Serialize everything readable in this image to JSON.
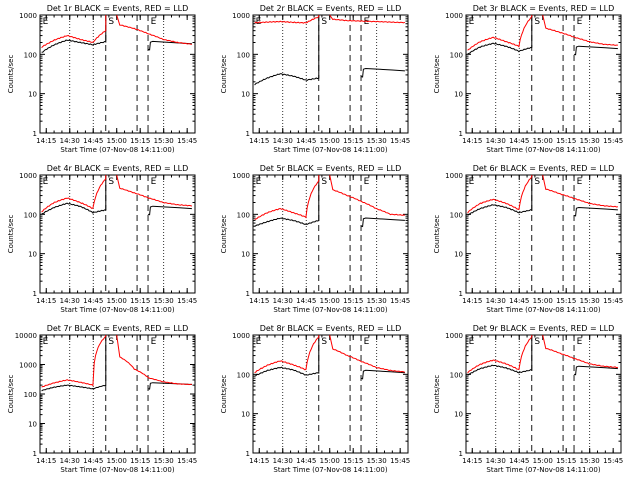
{
  "colors": {
    "events": "#000000",
    "lld": "#ff0000",
    "axis": "#000000",
    "background": "#ffffff"
  },
  "common": {
    "ylabel": "Counts/sec",
    "xlabel": "Start Time (07-Nov-08 14:11:00)",
    "xticks": [
      "14:15",
      "14:30",
      "14:45",
      "15:00",
      "15:15",
      "15:30",
      "15:45"
    ],
    "dotted_lines": [
      "14:30",
      "14:45",
      "15:30"
    ],
    "dashed_lines": [
      "14:53",
      "15:13",
      "15:20"
    ],
    "markers": [
      {
        "label": "E",
        "time": "14:12"
      },
      {
        "label": "S",
        "time": "14:54"
      },
      {
        "label": "E",
        "time": "15:21"
      }
    ]
  },
  "chart_data": [
    {
      "type": "line",
      "title": "Det 1r BLACK = Events, RED = LLD",
      "yscale": "log",
      "ylim": [
        1,
        1000
      ],
      "ytick_labels": [
        "1",
        "10",
        "100",
        "1000"
      ],
      "series": [
        {
          "name": "Events",
          "color": "#000000",
          "ref": 140,
          "seg1": [
            110,
            175,
            230,
            200,
            175,
            210
          ],
          "gap_end": 185
        },
        {
          "name": "LLD",
          "color": "#ff0000",
          "ref": 205,
          "seg1": [
            150,
            230,
            300,
            240,
            200,
            400
          ],
          "seg2": [
            560,
            450,
            330,
            240,
            200,
            180
          ]
        }
      ]
    },
    {
      "type": "line",
      "title": "Det 2r BLACK = Events, RED = LLD",
      "yscale": "log",
      "ylim": [
        1,
        1000
      ],
      "ytick_labels": [
        "1",
        "10",
        "100",
        "1000"
      ],
      "series": [
        {
          "name": "Events",
          "color": "#000000",
          "ref": 17,
          "seg1": [
            17,
            25,
            32,
            28,
            22,
            25
          ],
          "gap_end": 38
        },
        {
          "name": "LLD",
          "color": "#ff0000",
          "ref": 640,
          "seg1": [
            640,
            660,
            680,
            650,
            630,
            900
          ],
          "seg2": [
            780,
            720,
            700,
            680,
            660,
            640
          ]
        }
      ]
    },
    {
      "type": "line",
      "title": "Det 3r BLACK = Events, RED = LLD",
      "yscale": "log",
      "ylim": [
        1,
        1000
      ],
      "ytick_labels": [
        "1",
        "10",
        "100",
        "1000"
      ],
      "series": [
        {
          "name": "Events",
          "color": "#000000",
          "ref": 95,
          "seg1": [
            100,
            155,
            190,
            160,
            120,
            150
          ],
          "gap_end": 140
        },
        {
          "name": "LLD",
          "color": "#ff0000",
          "ref": 120,
          "seg1": [
            125,
            210,
            270,
            210,
            160,
            900
          ],
          "seg2": [
            460,
            360,
            270,
            210,
            180,
            170
          ]
        }
      ]
    },
    {
      "type": "line",
      "title": "Det 4r BLACK = Events, RED = LLD",
      "yscale": "log",
      "ylim": [
        1,
        1000
      ],
      "ytick_labels": [
        "1",
        "10",
        "100",
        "1000"
      ],
      "series": [
        {
          "name": "Events",
          "color": "#000000",
          "ref": 95,
          "seg1": [
            100,
            150,
            190,
            160,
            110,
            130
          ],
          "gap_end": 140
        },
        {
          "name": "LLD",
          "color": "#ff0000",
          "ref": 110,
          "seg1": [
            115,
            200,
            260,
            200,
            140,
            800
          ],
          "seg2": [
            460,
            350,
            260,
            200,
            175,
            165
          ]
        }
      ]
    },
    {
      "type": "line",
      "title": "Det 5r BLACK = Events, RED = LLD",
      "yscale": "log",
      "ylim": [
        1,
        1000
      ],
      "ytick_labels": [
        "1",
        "10",
        "100",
        "1000"
      ],
      "series": [
        {
          "name": "Events",
          "color": "#000000",
          "ref": 48,
          "seg1": [
            50,
            65,
            80,
            70,
            55,
            70
          ],
          "gap_end": 70
        },
        {
          "name": "LLD",
          "color": "#ff0000",
          "ref": 70,
          "seg1": [
            72,
            110,
            140,
            110,
            85,
            700
          ],
          "seg2": [
            420,
            300,
            210,
            140,
            100,
            95
          ]
        }
      ]
    },
    {
      "type": "line",
      "title": "Det 6r BLACK = Events, RED = LLD",
      "yscale": "log",
      "ylim": [
        1,
        1000
      ],
      "ytick_labels": [
        "1",
        "10",
        "100",
        "1000"
      ],
      "series": [
        {
          "name": "Events",
          "color": "#000000",
          "ref": 90,
          "seg1": [
            95,
            140,
            175,
            150,
            110,
            130
          ],
          "gap_end": 130
        },
        {
          "name": "LLD",
          "color": "#ff0000",
          "ref": 105,
          "seg1": [
            110,
            190,
            240,
            190,
            130,
            900
          ],
          "seg2": [
            440,
            330,
            250,
            190,
            165,
            155
          ]
        }
      ]
    },
    {
      "type": "line",
      "title": "Det 7r BLACK = Events, RED = LLD",
      "yscale": "log",
      "ylim": [
        1,
        10000
      ],
      "ytick_labels": [
        "1",
        "10",
        "100",
        "1000",
        "10000"
      ],
      "series": [
        {
          "name": "Events",
          "color": "#000000",
          "ref": 130,
          "seg1": [
            130,
            170,
            200,
            175,
            150,
            200
          ],
          "gap_end": 210
        },
        {
          "name": "LLD",
          "color": "#ff0000",
          "ref": 170,
          "seg1": [
            170,
            240,
            300,
            250,
            200,
            9000
          ],
          "seg2": [
            1800,
            700,
            350,
            260,
            220,
            210
          ]
        }
      ]
    },
    {
      "type": "line",
      "title": "Det 8r BLACK = Events, RED = LLD",
      "yscale": "log",
      "ylim": [
        1,
        1000
      ],
      "ytick_labels": [
        "1",
        "10",
        "100",
        "1000"
      ],
      "series": [
        {
          "name": "Events",
          "color": "#000000",
          "ref": 85,
          "seg1": [
            90,
            125,
            150,
            130,
            95,
            110
          ],
          "gap_end": 110
        },
        {
          "name": "LLD",
          "color": "#ff0000",
          "ref": 110,
          "seg1": [
            110,
            170,
            220,
            175,
            130,
            900
          ],
          "seg2": [
            440,
            300,
            210,
            150,
            125,
            115
          ]
        }
      ]
    },
    {
      "type": "line",
      "title": "Det 9r BLACK = Events, RED = LLD",
      "yscale": "log",
      "ylim": [
        1,
        1000
      ],
      "ytick_labels": [
        "1",
        "10",
        "100",
        "1000"
      ],
      "series": [
        {
          "name": "Events",
          "color": "#000000",
          "ref": 90,
          "seg1": [
            95,
            140,
            170,
            145,
            110,
            130
          ],
          "gap_end": 140
        },
        {
          "name": "LLD",
          "color": "#ff0000",
          "ref": 105,
          "seg1": [
            110,
            180,
            230,
            185,
            130,
            900
          ],
          "seg2": [
            460,
            340,
            250,
            185,
            160,
            150
          ]
        }
      ]
    }
  ]
}
